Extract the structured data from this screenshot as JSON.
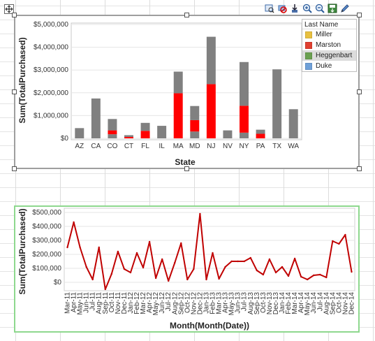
{
  "colors": {
    "gray": "#808080",
    "red": "#ff0000",
    "line": "#c00000",
    "miller": "#e8c040",
    "marston": "#e04030",
    "heggenbart": "#6aa050",
    "duke": "#6fa0d8"
  },
  "toolbar_icons": [
    "zoom-window-icon",
    "disable-filter-icon",
    "export-icon",
    "zoom-in-icon",
    "zoom-out-icon",
    "save-icon",
    "edit-icon"
  ],
  "legend": {
    "title": "Last Name",
    "items": [
      {
        "label": "Miller",
        "color": "#e8c040",
        "selected": false
      },
      {
        "label": "Marston",
        "color": "#e04030",
        "selected": false
      },
      {
        "label": "Heggenbart",
        "color": "#6aa050",
        "selected": true
      },
      {
        "label": "Duke",
        "color": "#6fa0d8",
        "selected": false
      }
    ]
  },
  "chart_data": [
    {
      "type": "bar",
      "stacked": true,
      "xlabel": "State",
      "ylabel": "Sum(TotalPurchased)",
      "ylim": [
        0,
        5000000
      ],
      "yticks": [
        "$0",
        "$1,000,000",
        "$2,000,000",
        "$3,000,000",
        "$4,000,000",
        "$5,000,000"
      ],
      "categories": [
        "AZ",
        "CA",
        "CO",
        "CT",
        "FL",
        "IL",
        "MA",
        "MD",
        "NJ",
        "NV",
        "NY",
        "PA",
        "TX",
        "WA"
      ],
      "segments": [
        [
          {
            "c": "gray",
            "v": 450000
          }
        ],
        [
          {
            "c": "gray",
            "v": 1750000
          }
        ],
        [
          {
            "c": "gray",
            "v": 180000
          },
          {
            "c": "red",
            "v": 170000
          },
          {
            "c": "gray",
            "v": 500000
          }
        ],
        [
          {
            "c": "red",
            "v": 60000
          },
          {
            "c": "gray",
            "v": 80000
          }
        ],
        [
          {
            "c": "red",
            "v": 330000
          },
          {
            "c": "gray",
            "v": 350000
          }
        ],
        [
          {
            "c": "gray",
            "v": 550000
          }
        ],
        [
          {
            "c": "red",
            "v": 1980000
          },
          {
            "c": "gray",
            "v": 950000
          }
        ],
        [
          {
            "c": "gray",
            "v": 300000
          },
          {
            "c": "red",
            "v": 500000
          },
          {
            "c": "gray",
            "v": 620000
          }
        ],
        [
          {
            "c": "red",
            "v": 2380000
          },
          {
            "c": "gray",
            "v": 2080000
          }
        ],
        [
          {
            "c": "gray",
            "v": 350000
          }
        ],
        [
          {
            "c": "gray",
            "v": 250000
          },
          {
            "c": "red",
            "v": 1180000
          },
          {
            "c": "gray",
            "v": 1920000
          }
        ],
        [
          {
            "c": "red",
            "v": 200000
          },
          {
            "c": "gray",
            "v": 180000
          }
        ],
        [
          {
            "c": "gray",
            "v": 3030000
          }
        ],
        [
          {
            "c": "gray",
            "v": 1280000
          }
        ]
      ]
    },
    {
      "type": "line",
      "xlabel": "Month(Month(Date))",
      "ylabel": "Sum(TotalPurchased)",
      "ylim": [
        0,
        500000
      ],
      "yticks": [
        "$0",
        "$100,000",
        "$200,000",
        "$300,000",
        "$400,000",
        "$500,000"
      ],
      "x": [
        "Mar-11",
        "Apr-11",
        "May-11",
        "Jun-11",
        "Jul-11",
        "Aug-11",
        "Sep-11",
        "Oct-11",
        "Nov-11",
        "Dec-11",
        "Jan-12",
        "Feb-12",
        "Mar-12",
        "Apr-12",
        "May-12",
        "Jun-12",
        "Jul-12",
        "Aug-12",
        "Sep-12",
        "Oct-12",
        "Nov-12",
        "Dec-12",
        "Jan-13",
        "Feb-13",
        "Mar-13",
        "Apr-13",
        "May-13",
        "Jun-13",
        "Jul-13",
        "Aug-13",
        "Sep-13",
        "Oct-13",
        "Nov-13",
        "Dec-13",
        "Jan-14",
        "Feb-14",
        "Mar-14",
        "Apr-14",
        "May-14",
        "Jun-14",
        "Jul-14",
        "Aug-14",
        "Sep-14",
        "Oct-14",
        "Nov-14",
        "Dec-14"
      ],
      "xtick_labels": [
        "Mar-11",
        "May-11",
        "Jul-11",
        "Sep-11",
        "Nov-11",
        "Jan-12",
        "Mar-12",
        "May-12",
        "Jul-12",
        "Sep-12",
        "Nov-12",
        "Jan-13",
        "Mar-13",
        "May-13",
        "Jul-13",
        "Sep-13",
        "Nov-13",
        "Jan-14",
        "Mar-14",
        "May-14",
        "Jul-14",
        "Sep-14",
        "Nov-14"
      ],
      "x_minor_labels": [
        "Apr-11",
        "Jun-11",
        "Aug-11",
        "Oct-11",
        "Dec-11",
        "Feb-12",
        "Apr-12",
        "Jun-12",
        "Aug-12",
        "Oct-12",
        "Dec-12",
        "Feb-13",
        "Apr-13",
        "Jun-13",
        "Aug-13",
        "Oct-13",
        "Dec-13",
        "Feb-14",
        "Apr-14",
        "Jun-14",
        "Aug-14",
        "Oct-14",
        "Dec-14"
      ],
      "values": [
        250000,
        430000,
        250000,
        110000,
        20000,
        250000,
        -50000,
        60000,
        220000,
        95000,
        70000,
        210000,
        105000,
        290000,
        30000,
        165000,
        10000,
        140000,
        280000,
        20000,
        95000,
        490000,
        20000,
        210000,
        25000,
        110000,
        150000,
        150000,
        150000,
        175000,
        85000,
        55000,
        165000,
        70000,
        110000,
        45000,
        170000,
        40000,
        20000,
        50000,
        55000,
        35000,
        295000,
        275000,
        340000,
        75000
      ]
    }
  ]
}
